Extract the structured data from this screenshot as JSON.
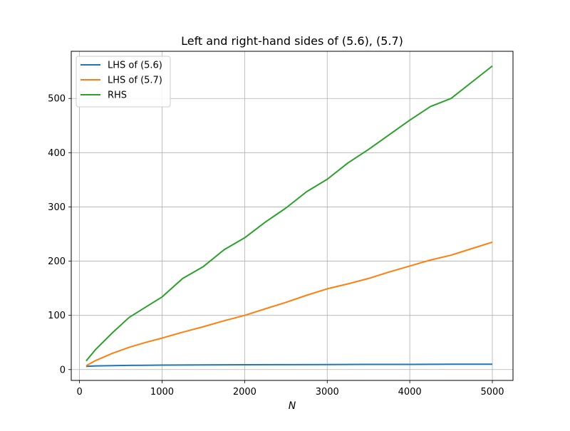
{
  "chart_data": {
    "type": "line",
    "title": "Left and right-hand sides of (5.6), (5.7)",
    "xlabel": "N",
    "ylabel": "",
    "xlim": [
      -100,
      5250
    ],
    "ylim": [
      -20,
      587
    ],
    "xticks": [
      0,
      1000,
      2000,
      3000,
      4000,
      5000
    ],
    "xtick_labels": [
      "0",
      "1000",
      "2000",
      "3000",
      "4000",
      "5000"
    ],
    "yticks": [
      0,
      100,
      200,
      300,
      400,
      500
    ],
    "ytick_labels": [
      "0",
      "100",
      "200",
      "300",
      "400",
      "500"
    ],
    "grid": true,
    "legend_position": "top-left",
    "series": [
      {
        "name": "LHS of (5.6)",
        "color": "#1f77b4",
        "x": [
          80,
          200,
          400,
          600,
          800,
          1000,
          1500,
          2000,
          2500,
          3000,
          3500,
          4000,
          4500,
          5000
        ],
        "y": [
          6.0,
          6.8,
          7.3,
          7.7,
          8.0,
          8.2,
          8.6,
          8.9,
          9.1,
          9.3,
          9.5,
          9.6,
          9.8,
          9.9
        ]
      },
      {
        "name": "LHS of (5.7)",
        "color": "#ff7f0e",
        "x": [
          80,
          200,
          400,
          600,
          800,
          1000,
          1250,
          1500,
          1750,
          2000,
          2250,
          2500,
          2750,
          3000,
          3250,
          3500,
          3750,
          4000,
          4250,
          4500,
          4750,
          5000
        ],
        "y": [
          7,
          17,
          30,
          41,
          50,
          58,
          69,
          79,
          90,
          100,
          112,
          124,
          137,
          149,
          158,
          168,
          180,
          191,
          202,
          211,
          223,
          235
        ]
      },
      {
        "name": "RHS",
        "color": "#2ca02c",
        "x": [
          80,
          200,
          400,
          600,
          800,
          1000,
          1250,
          1500,
          1750,
          2000,
          2250,
          2500,
          2750,
          3000,
          3250,
          3500,
          3750,
          4000,
          4250,
          4500,
          4750,
          5000
        ],
        "y": [
          16,
          38,
          68,
          96,
          115,
          134,
          168,
          190,
          221,
          243,
          272,
          298,
          328,
          351,
          381,
          406,
          433,
          460,
          485,
          500,
          530,
          560
        ]
      }
    ]
  }
}
